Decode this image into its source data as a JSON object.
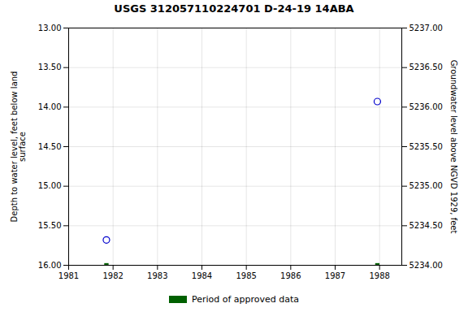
{
  "chart_data": {
    "type": "scatter",
    "title": "USGS 312057110224701 D-24-19 14ABA",
    "ylabel": "Depth to water level, feet below land\nsurface",
    "y2label": "Groundwater level above NGVD 1929, feet",
    "xlim": [
      1981,
      1988.5
    ],
    "xticks": [
      1981,
      1982,
      1983,
      1984,
      1985,
      1986,
      1987,
      1988
    ],
    "ylim": [
      16.0,
      13.0
    ],
    "yticks": [
      {
        "value": 13.0,
        "label": "13.00"
      },
      {
        "value": 13.5,
        "label": "13.50"
      },
      {
        "value": 14.0,
        "label": "14.00"
      },
      {
        "value": 14.5,
        "label": "14.50"
      },
      {
        "value": 15.0,
        "label": "15.00"
      },
      {
        "value": 15.5,
        "label": "15.50"
      },
      {
        "value": 16.0,
        "label": "16.00"
      }
    ],
    "y2lim": [
      5234.0,
      5237.0
    ],
    "y2ticks": [
      {
        "value": 5234.0,
        "label": "5234.00"
      },
      {
        "value": 5234.5,
        "label": "5234.50"
      },
      {
        "value": 5235.0,
        "label": "5235.00"
      },
      {
        "value": 5235.5,
        "label": "5235.50"
      },
      {
        "value": 5236.0,
        "label": "5236.00"
      },
      {
        "value": 5236.5,
        "label": "5236.50"
      },
      {
        "value": 5237.0,
        "label": "5237.00"
      }
    ],
    "grid": true,
    "legend": "bottom",
    "series": [
      {
        "color": "#0000cc",
        "marker": "open-circle",
        "x": [
          1981.85,
          1987.95
        ],
        "values": [
          15.68,
          13.93
        ]
      },
      {
        "name": "Period of approved data",
        "color": "#006000",
        "marker": "square",
        "x": [
          1981.85,
          1987.95
        ],
        "values": [
          16.0,
          16.0
        ]
      }
    ]
  }
}
